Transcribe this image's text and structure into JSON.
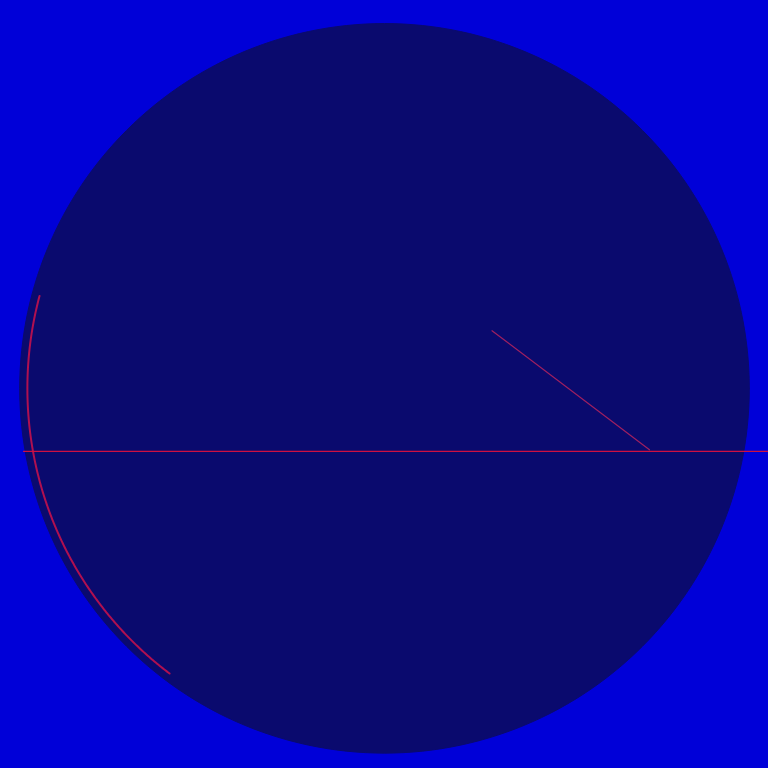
{
  "chart_data": {
    "type": "shapes",
    "xlim": [
      -1,
      1
    ],
    "ylim": [
      -1,
      1
    ],
    "tick_labels": false,
    "grid": false,
    "shapes": [
      {
        "type": "disc",
        "center": [
          0,
          -0.01
        ],
        "radius": 0.95,
        "color": "#0a0a6e"
      },
      {
        "type": "arc",
        "center": [
          0,
          -0.01
        ],
        "radius": 0.93,
        "angles": [
          165,
          233
        ],
        "color": "#b01050"
      },
      {
        "type": "line",
        "x": [
          -0.94,
          1
        ],
        "y": [
          -0.174,
          -0.174
        ],
        "color": "#d01040"
      },
      {
        "type": "line",
        "x": [
          0.28,
          0.69
        ],
        "y": [
          0.14,
          -0.17
        ],
        "color": "#a02060"
      }
    ]
  }
}
